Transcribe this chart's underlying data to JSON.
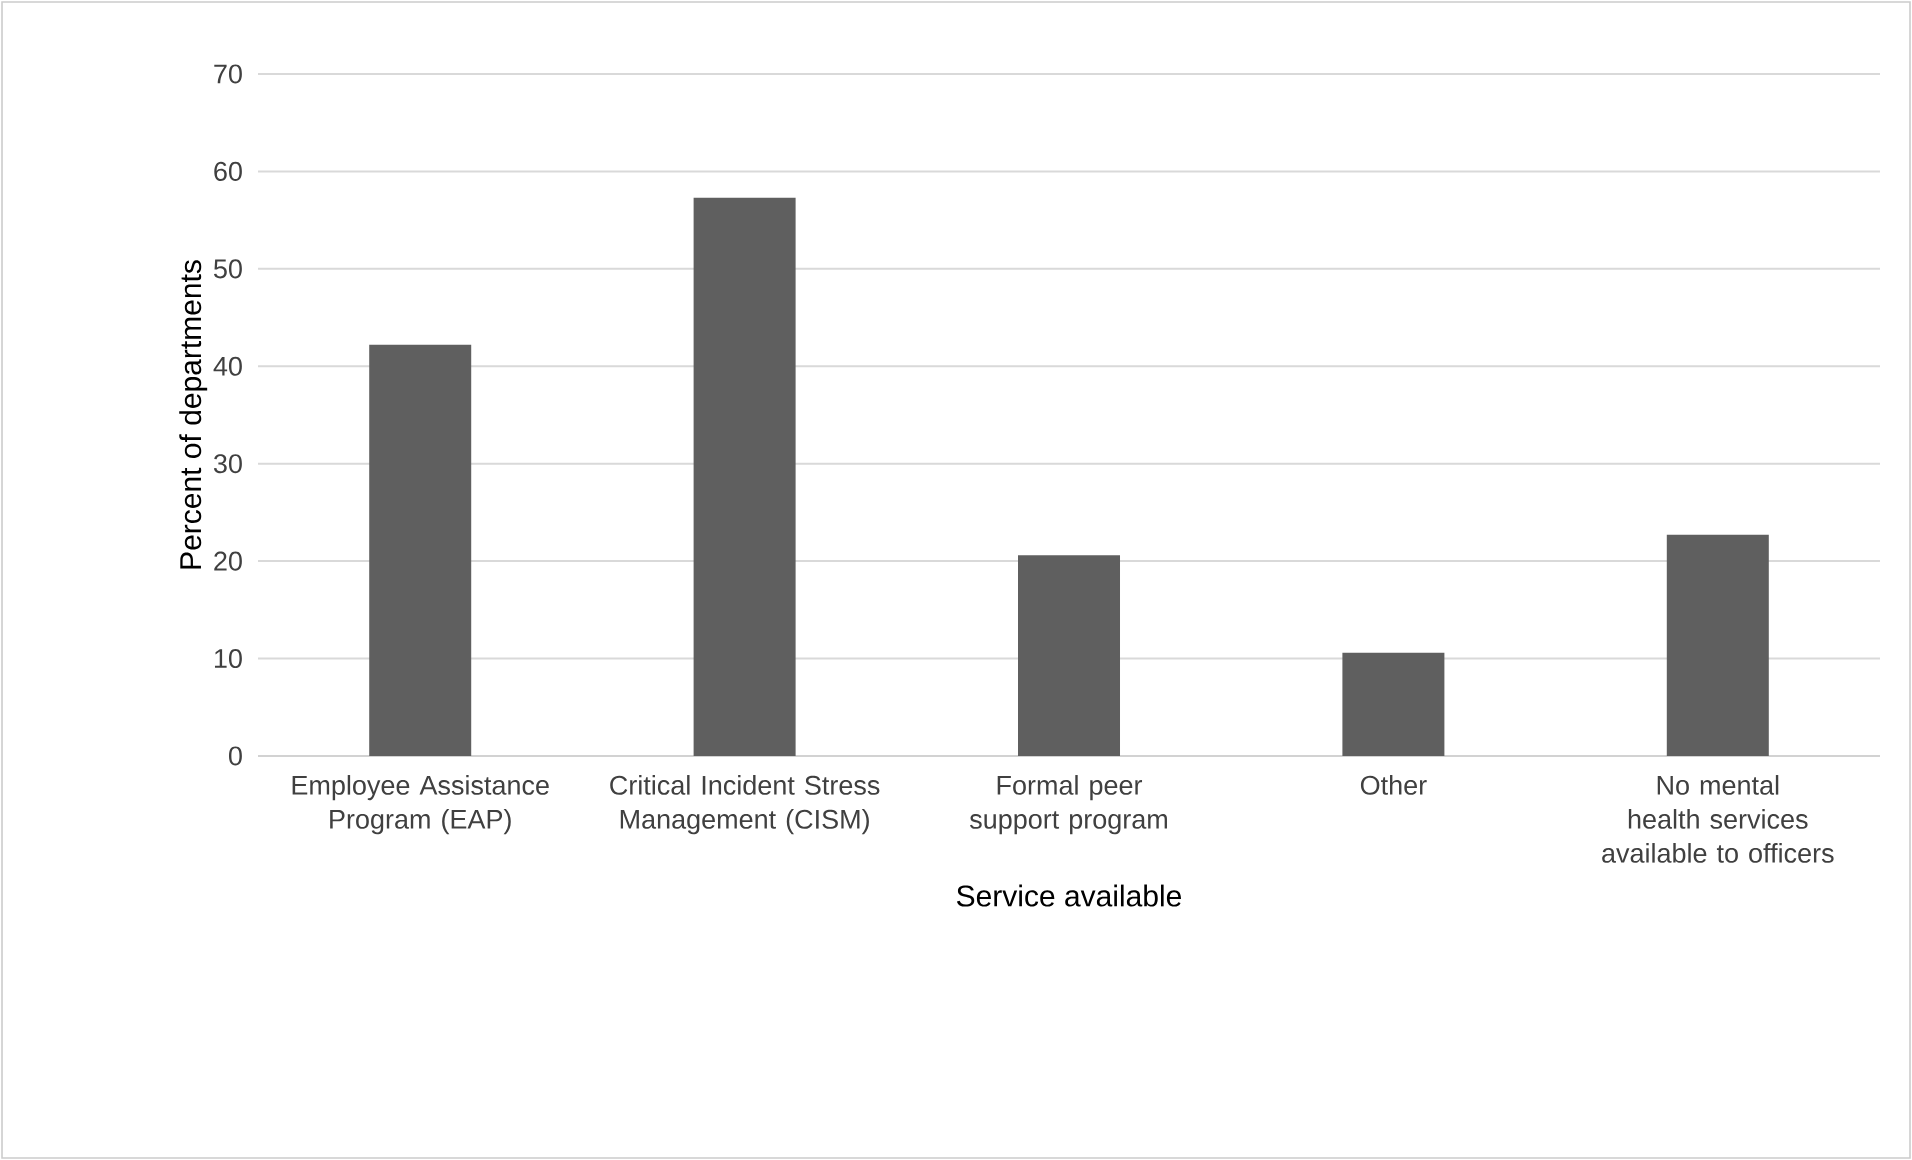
{
  "chart_data": {
    "type": "bar",
    "xlabel": "Service available",
    "ylabel": "Percent of departments",
    "categories": [
      "Employee Assistance Program (EAP)",
      "Critical Incident Stress Management (CISM)",
      "Formal peer support program",
      "Other",
      "No mental health services available to officers"
    ],
    "values": [
      42.2,
      57.3,
      20.6,
      10.6,
      22.7
    ],
    "color": "#5f5f5f",
    "ylim": [
      0,
      70
    ],
    "yticks": [
      0,
      10,
      20,
      30,
      40,
      50,
      60,
      70
    ],
    "grid": "y"
  }
}
